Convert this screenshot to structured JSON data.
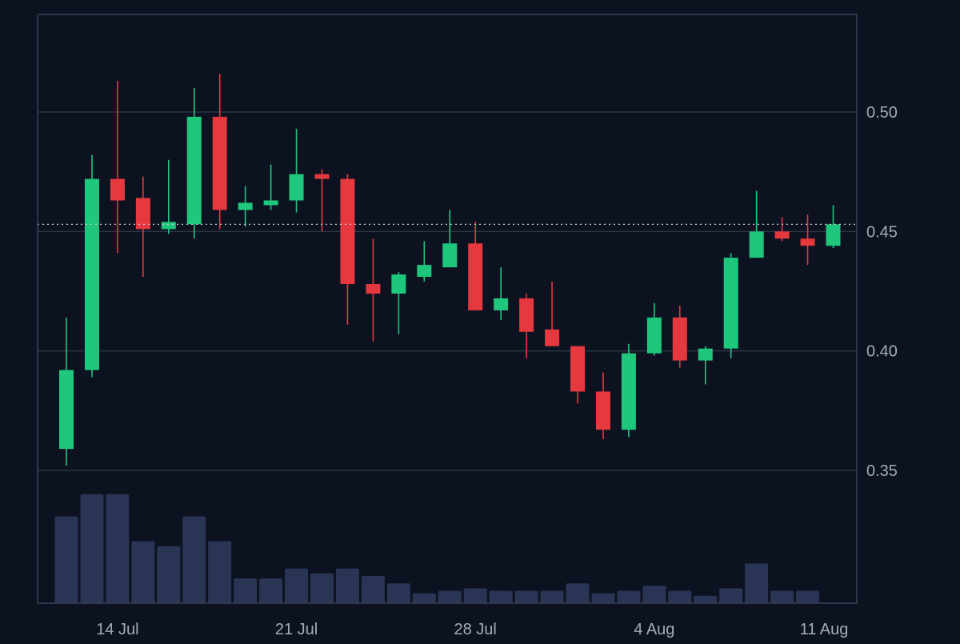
{
  "colors": {
    "background": "#0c1220",
    "grid": "#2b3342",
    "frame": "#3a4354",
    "axis_text": "#a4abb8",
    "up": "#1fc77d",
    "down": "#e5393f",
    "volume": "#2a3454",
    "last_price_line": "#c8ccd4"
  },
  "chart_data": {
    "type": "candlestick",
    "title": "",
    "xlabel": "",
    "ylabel": "",
    "y_ticks": [
      0.35,
      0.4,
      0.45,
      0.5
    ],
    "y_tick_labels": [
      "0.35",
      "0.40",
      "0.45",
      "0.50"
    ],
    "x_tick_labels": [
      {
        "label": "14 Jul",
        "index": 2
      },
      {
        "label": "21 Jul",
        "index": 9
      },
      {
        "label": "28 Jul",
        "index": 16
      },
      {
        "label": "4 Aug",
        "index": 23
      },
      {
        "label": "11 Aug",
        "index": 30
      }
    ],
    "ylim": [
      0.3,
      0.545
    ],
    "last_price": 0.453,
    "grid": true,
    "candles": [
      {
        "date": "12 Jul",
        "open": 0.359,
        "high": 0.414,
        "low": 0.352,
        "close": 0.392
      },
      {
        "date": "13 Jul",
        "open": 0.392,
        "high": 0.482,
        "low": 0.389,
        "close": 0.472
      },
      {
        "date": "14 Jul",
        "open": 0.472,
        "high": 0.513,
        "low": 0.441,
        "close": 0.463
      },
      {
        "date": "15 Jul",
        "open": 0.464,
        "high": 0.473,
        "low": 0.431,
        "close": 0.451
      },
      {
        "date": "16 Jul",
        "open": 0.451,
        "high": 0.48,
        "low": 0.449,
        "close": 0.454
      },
      {
        "date": "17 Jul",
        "open": 0.453,
        "high": 0.51,
        "low": 0.447,
        "close": 0.498
      },
      {
        "date": "18 Jul",
        "open": 0.498,
        "high": 0.516,
        "low": 0.451,
        "close": 0.459
      },
      {
        "date": "19 Jul",
        "open": 0.459,
        "high": 0.469,
        "low": 0.452,
        "close": 0.462
      },
      {
        "date": "20 Jul",
        "open": 0.461,
        "high": 0.478,
        "low": 0.459,
        "close": 0.463
      },
      {
        "date": "21 Jul",
        "open": 0.463,
        "high": 0.493,
        "low": 0.458,
        "close": 0.474
      },
      {
        "date": "22 Jul",
        "open": 0.474,
        "high": 0.476,
        "low": 0.45,
        "close": 0.472
      },
      {
        "date": "23 Jul",
        "open": 0.472,
        "high": 0.474,
        "low": 0.411,
        "close": 0.428
      },
      {
        "date": "24 Jul",
        "open": 0.428,
        "high": 0.447,
        "low": 0.404,
        "close": 0.424
      },
      {
        "date": "25 Jul",
        "open": 0.424,
        "high": 0.433,
        "low": 0.407,
        "close": 0.432
      },
      {
        "date": "26 Jul",
        "open": 0.431,
        "high": 0.446,
        "low": 0.429,
        "close": 0.436
      },
      {
        "date": "27 Jul",
        "open": 0.435,
        "high": 0.459,
        "low": 0.435,
        "close": 0.445
      },
      {
        "date": "28 Jul",
        "open": 0.445,
        "high": 0.454,
        "low": 0.417,
        "close": 0.417
      },
      {
        "date": "29 Jul",
        "open": 0.417,
        "high": 0.435,
        "low": 0.413,
        "close": 0.422
      },
      {
        "date": "30 Jul",
        "open": 0.422,
        "high": 0.424,
        "low": 0.397,
        "close": 0.408
      },
      {
        "date": "31 Jul",
        "open": 0.409,
        "high": 0.429,
        "low": 0.402,
        "close": 0.402
      },
      {
        "date": "1 Aug",
        "open": 0.402,
        "high": 0.402,
        "low": 0.378,
        "close": 0.383
      },
      {
        "date": "2 Aug",
        "open": 0.383,
        "high": 0.391,
        "low": 0.363,
        "close": 0.367
      },
      {
        "date": "3 Aug",
        "open": 0.367,
        "high": 0.403,
        "low": 0.364,
        "close": 0.399
      },
      {
        "date": "4 Aug",
        "open": 0.399,
        "high": 0.42,
        "low": 0.398,
        "close": 0.414
      },
      {
        "date": "5 Aug",
        "open": 0.414,
        "high": 0.419,
        "low": 0.393,
        "close": 0.396
      },
      {
        "date": "6 Aug",
        "open": 0.396,
        "high": 0.402,
        "low": 0.386,
        "close": 0.401
      },
      {
        "date": "7 Aug",
        "open": 0.401,
        "high": 0.441,
        "low": 0.397,
        "close": 0.439
      },
      {
        "date": "8 Aug",
        "open": 0.439,
        "high": 0.467,
        "low": 0.439,
        "close": 0.45
      },
      {
        "date": "9 Aug",
        "open": 0.45,
        "high": 0.456,
        "low": 0.446,
        "close": 0.447
      },
      {
        "date": "10 Aug",
        "open": 0.447,
        "high": 0.457,
        "low": 0.436,
        "close": 0.444
      },
      {
        "date": "11 Aug",
        "open": 0.444,
        "high": 0.461,
        "low": 0.443,
        "close": 0.453
      }
    ],
    "volume": [
      35,
      44,
      44,
      25,
      23,
      35,
      25,
      10,
      10,
      14,
      12,
      14,
      11,
      8,
      4,
      5,
      6,
      5,
      5,
      5,
      8,
      4,
      5,
      7,
      5,
      3,
      6,
      16,
      5,
      5,
      0
    ]
  }
}
